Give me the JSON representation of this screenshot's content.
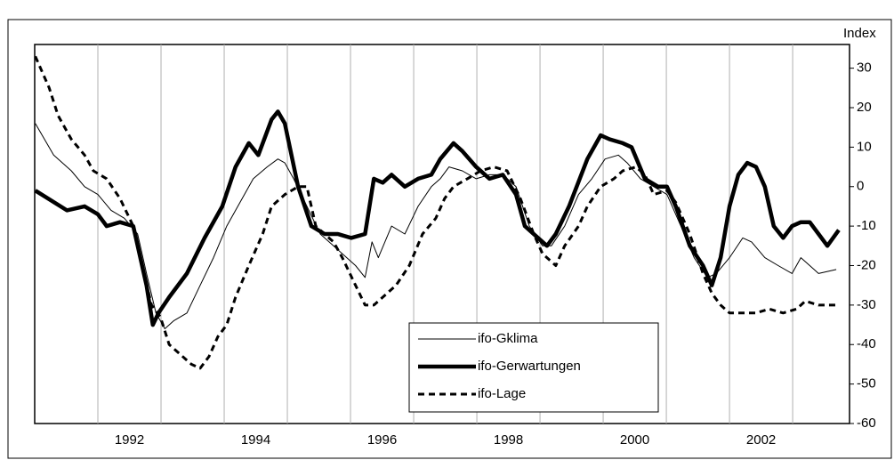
{
  "chart_data": {
    "type": "line",
    "y_label": "Index",
    "xlim": [
      1991,
      2003.9
    ],
    "ylim": [
      -60,
      36
    ],
    "yticks": [
      30,
      20,
      10,
      0,
      -10,
      -20,
      -30,
      -40,
      -50,
      -60
    ],
    "xticks": [
      {
        "value": 1992.5,
        "label": "1992"
      },
      {
        "value": 1994.5,
        "label": "1994"
      },
      {
        "value": 1996.5,
        "label": "1996"
      },
      {
        "value": 1998.5,
        "label": "1998"
      },
      {
        "value": 2000.5,
        "label": "2000"
      },
      {
        "value": 2002.5,
        "label": "2002"
      }
    ],
    "xgrid": [
      1992,
      1993,
      1994,
      1995,
      1996,
      1997,
      1998,
      1999,
      2000,
      2001,
      2002,
      2003
    ],
    "series": [
      {
        "name": "ifo-Gklima",
        "color": "#000000",
        "width": 1,
        "dashed": false,
        "x": [
          1991.01,
          1991.3,
          1991.58,
          1991.79,
          1992.0,
          1992.21,
          1992.42,
          1992.63,
          1992.77,
          1992.92,
          1993.06,
          1993.2,
          1993.41,
          1993.62,
          1993.83,
          1994.04,
          1994.25,
          1994.46,
          1994.68,
          1994.85,
          1994.96,
          1995.1,
          1995.31,
          1995.52,
          1995.73,
          1995.94,
          1996.08,
          1996.23,
          1996.34,
          1996.44,
          1996.65,
          1996.86,
          1997.07,
          1997.28,
          1997.42,
          1997.56,
          1997.77,
          1997.99,
          1998.2,
          1998.41,
          1998.62,
          1998.83,
          1999.04,
          1999.18,
          1999.39,
          1999.61,
          1999.82,
          2000.03,
          2000.24,
          2000.38,
          2000.59,
          2000.8,
          2001.01,
          2001.23,
          2001.44,
          2001.65,
          2001.79,
          2002.0,
          2002.21,
          2002.35,
          2002.56,
          2002.77,
          2002.99,
          2003.13,
          2003.27,
          2003.41,
          2003.69
        ],
        "values": [
          16,
          8,
          4,
          0,
          -2,
          -6,
          -8,
          -12,
          -22,
          -32,
          -36,
          -34,
          -32,
          -25,
          -18,
          -10,
          -4,
          2,
          5,
          7,
          6,
          2,
          -5,
          -12,
          -15,
          -18,
          -20,
          -23,
          -14,
          -18,
          -10,
          -12,
          -5,
          0,
          2,
          5,
          4,
          2,
          3,
          3,
          0,
          -10,
          -15,
          -15,
          -10,
          -2,
          2,
          7,
          8,
          6,
          2,
          0,
          -2,
          -10,
          -18,
          -23,
          -22,
          -18,
          -13,
          -14,
          -18,
          -20,
          -22,
          -18,
          -20,
          -22,
          -21
        ]
      },
      {
        "name": "ifo-Gerwartungen",
        "color": "#000000",
        "width": 4.5,
        "dashed": false,
        "x": [
          1991.01,
          1991.51,
          1991.79,
          1992.0,
          1992.14,
          1992.35,
          1992.56,
          1992.77,
          1992.87,
          1992.96,
          1993.13,
          1993.41,
          1993.69,
          1993.97,
          1994.18,
          1994.39,
          1994.54,
          1994.75,
          1994.85,
          1994.96,
          1995.17,
          1995.38,
          1995.59,
          1995.8,
          1996.01,
          1996.23,
          1996.37,
          1996.51,
          1996.65,
          1996.86,
          1997.07,
          1997.28,
          1997.42,
          1997.63,
          1997.77,
          1997.99,
          1998.2,
          1998.41,
          1998.62,
          1998.76,
          1998.97,
          1999.11,
          1999.25,
          1999.46,
          1999.75,
          1999.96,
          2000.1,
          2000.31,
          2000.45,
          2000.66,
          2000.87,
          2001.01,
          2001.15,
          2001.37,
          2001.58,
          2001.72,
          2001.86,
          2002.0,
          2002.14,
          2002.28,
          2002.42,
          2002.56,
          2002.7,
          2002.85,
          2002.99,
          2003.13,
          2003.27,
          2003.41,
          2003.55,
          2003.73
        ],
        "values": [
          -1,
          -6,
          -5,
          -7,
          -10,
          -9,
          -10,
          -25,
          -35,
          -32,
          -28,
          -22,
          -13,
          -5,
          5,
          11,
          8,
          17,
          19,
          16,
          0,
          -10,
          -12,
          -12,
          -13,
          -12,
          2,
          1,
          3,
          0,
          2,
          3,
          7,
          11,
          9,
          5,
          2,
          3,
          -2,
          -10,
          -13,
          -15,
          -12,
          -5,
          7,
          13,
          12,
          11,
          10,
          2,
          0,
          0,
          -5,
          -15,
          -20,
          -25,
          -18,
          -5,
          3,
          6,
          5,
          0,
          -10,
          -13,
          -10,
          -9,
          -9,
          -12,
          -15,
          -11
        ]
      },
      {
        "name": "ifo-Lage",
        "color": "#000000",
        "width": 3,
        "dashed": true,
        "x": [
          1991.01,
          1991.23,
          1991.37,
          1991.58,
          1991.79,
          1991.93,
          1992.14,
          1992.35,
          1992.56,
          1992.7,
          1992.85,
          1992.99,
          1993.13,
          1993.27,
          1993.48,
          1993.62,
          1993.76,
          1993.9,
          1994.04,
          1994.18,
          1994.39,
          1994.61,
          1994.75,
          1994.96,
          1995.17,
          1995.31,
          1995.45,
          1995.59,
          1995.73,
          1995.87,
          1996.08,
          1996.23,
          1996.37,
          1996.51,
          1996.72,
          1996.93,
          1997.14,
          1997.35,
          1997.49,
          1997.63,
          1997.85,
          1998.06,
          1998.27,
          1998.48,
          1998.69,
          1998.9,
          1999.04,
          1999.25,
          1999.39,
          1999.61,
          1999.75,
          1999.96,
          2000.17,
          2000.31,
          2000.52,
          2000.66,
          2000.8,
          2001.01,
          2001.15,
          2001.37,
          2001.58,
          2001.72,
          2001.86,
          2002.0,
          2002.21,
          2002.42,
          2002.63,
          2002.85,
          2003.06,
          2003.2,
          2003.41,
          2003.69
        ],
        "values": [
          33,
          25,
          18,
          12,
          8,
          4,
          2,
          -3,
          -10,
          -20,
          -30,
          -33,
          -40,
          -42,
          -45,
          -46,
          -43,
          -38,
          -35,
          -28,
          -20,
          -12,
          -5,
          -2,
          0,
          0,
          -10,
          -12,
          -14,
          -18,
          -25,
          -30,
          -30,
          -28,
          -25,
          -20,
          -12,
          -8,
          -3,
          0,
          2,
          4,
          5,
          4,
          -3,
          -12,
          -17,
          -20,
          -15,
          -10,
          -5,
          0,
          2,
          4,
          5,
          3,
          -2,
          -1,
          -4,
          -12,
          -22,
          -27,
          -30,
          -32,
          -32,
          -32,
          -31,
          -32,
          -31,
          -29,
          -30,
          -30
        ]
      }
    ]
  }
}
